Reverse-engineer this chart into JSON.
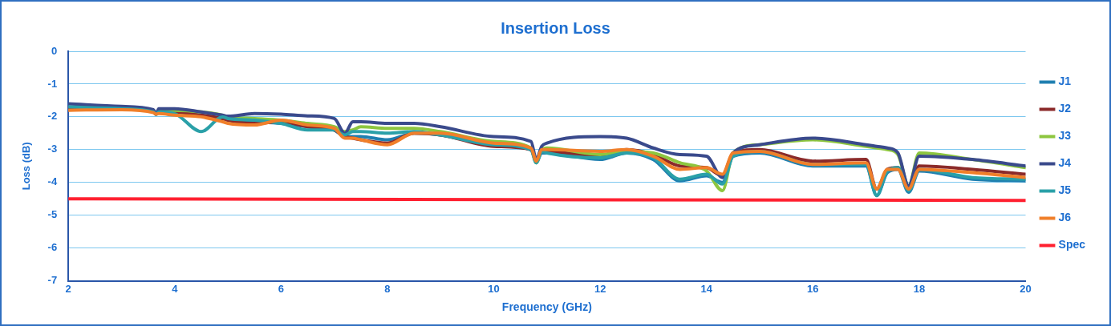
{
  "chart_data": {
    "type": "line",
    "title": "Insertion Loss",
    "xlabel": "Frequency (GHz)",
    "ylabel": "Loss (dB)",
    "x": [
      2,
      3,
      3.6,
      3.65,
      3.7,
      4,
      4.5,
      4.9,
      5,
      5.5,
      6,
      6.5,
      7,
      7.2,
      7.35,
      7.5,
      8,
      8.5,
      9,
      10,
      10.7,
      10.8,
      10.9,
      11,
      12,
      12.5,
      13,
      13.5,
      14,
      14.3,
      14.5,
      15,
      16,
      17,
      17.2,
      17.4,
      17.6,
      17.8,
      18,
      19,
      20
    ],
    "series": [
      {
        "name": "J1",
        "color": "#1f7fb0",
        "values": [
          -1.7,
          -1.75,
          -1.85,
          -1.92,
          -1.85,
          -1.85,
          -1.95,
          -2.05,
          -2.1,
          -2.15,
          -2.2,
          -2.3,
          -2.4,
          -2.6,
          -2.6,
          -2.6,
          -2.7,
          -2.5,
          -2.55,
          -2.85,
          -3.0,
          -3.4,
          -3.1,
          -3.1,
          -3.3,
          -3.1,
          -3.3,
          -3.95,
          -3.8,
          -4.0,
          -3.2,
          -3.1,
          -3.5,
          -3.5,
          -4.4,
          -3.7,
          -3.6,
          -4.3,
          -3.65,
          -3.9,
          -3.95
        ]
      },
      {
        "name": "J2",
        "color": "#8b2a2a",
        "values": [
          -1.72,
          -1.73,
          -1.83,
          -1.9,
          -1.85,
          -1.85,
          -1.95,
          -2.05,
          -2.1,
          -2.2,
          -2.15,
          -2.3,
          -2.4,
          -2.6,
          -2.65,
          -2.7,
          -2.8,
          -2.5,
          -2.55,
          -2.9,
          -3.0,
          -3.3,
          -3.05,
          -3.05,
          -3.2,
          -3.0,
          -3.15,
          -3.5,
          -3.55,
          -3.8,
          -3.1,
          -3.0,
          -3.35,
          -3.3,
          -4.2,
          -3.6,
          -3.55,
          -4.2,
          -3.5,
          -3.6,
          -3.75
        ]
      },
      {
        "name": "J3",
        "color": "#8dc63f",
        "values": [
          null,
          null,
          null,
          null,
          -1.8,
          -1.8,
          -1.85,
          -1.95,
          -2.0,
          -2.05,
          -2.1,
          -2.2,
          -2.3,
          -2.45,
          -2.4,
          -2.3,
          -2.35,
          -2.35,
          -2.45,
          -2.75,
          -2.95,
          -3.4,
          -3.0,
          -2.95,
          -3.15,
          -3.05,
          -3.1,
          -3.4,
          -3.65,
          -4.25,
          -3.1,
          -2.85,
          -2.7,
          -2.9,
          -2.95,
          -3.0,
          -3.15,
          -4.1,
          -3.1,
          -3.3,
          -3.55
        ]
      },
      {
        "name": "J4",
        "color": "#3a4a8c",
        "values": [
          -1.6,
          -1.68,
          -1.78,
          -1.92,
          -1.75,
          -1.75,
          -1.85,
          -1.95,
          -1.98,
          -1.9,
          -1.92,
          -1.97,
          -2.05,
          -2.5,
          -2.15,
          -2.15,
          -2.2,
          -2.2,
          -2.3,
          -2.6,
          -2.75,
          -3.3,
          -2.9,
          -2.8,
          -2.6,
          -2.65,
          -2.95,
          -3.15,
          -3.2,
          -3.85,
          -3.1,
          -2.85,
          -2.65,
          -2.85,
          -2.9,
          -2.95,
          -3.1,
          -4.1,
          -3.2,
          -3.3,
          -3.5
        ]
      },
      {
        "name": "J5",
        "color": "#2aa0a8",
        "values": [
          -1.7,
          -1.75,
          -1.85,
          -1.92,
          -1.85,
          -1.9,
          -2.45,
          -2.0,
          -2.05,
          -2.1,
          -2.2,
          -2.4,
          -2.4,
          -2.55,
          -2.45,
          -2.45,
          -2.5,
          -2.45,
          -2.55,
          -2.85,
          -3.0,
          -3.4,
          -3.05,
          -3.1,
          -3.25,
          -3.1,
          -3.25,
          -3.9,
          -3.75,
          -4.05,
          -3.2,
          -3.05,
          -3.45,
          -3.45,
          -4.4,
          -3.65,
          -3.55,
          -4.25,
          -3.6,
          -3.85,
          -3.9
        ]
      },
      {
        "name": "J6",
        "color": "#f07f2a",
        "values": [
          -1.8,
          -1.78,
          -1.87,
          -1.92,
          -1.9,
          -1.95,
          -2.0,
          -2.15,
          -2.2,
          -2.25,
          -2.1,
          -2.25,
          -2.35,
          -2.65,
          -2.65,
          -2.7,
          -2.85,
          -2.5,
          -2.5,
          -2.8,
          -2.95,
          -3.35,
          -3.0,
          -3.0,
          -3.05,
          -3.0,
          -3.2,
          -3.6,
          -3.55,
          -3.75,
          -3.1,
          -3.05,
          -3.45,
          -3.4,
          -4.2,
          -3.6,
          -3.6,
          -4.2,
          -3.6,
          -3.7,
          -3.85
        ]
      },
      {
        "name": "Spec",
        "color": "#ff2030",
        "x": [
          2,
          20
        ],
        "values": [
          -4.5,
          -4.55
        ]
      }
    ],
    "xlim": [
      2,
      20
    ],
    "xticks": [
      2,
      4,
      6,
      8,
      10,
      12,
      14,
      16,
      18,
      20
    ],
    "ylim": [
      -7,
      0
    ],
    "yticks": [
      -7,
      -6,
      -5,
      -4,
      -3,
      -2,
      -1,
      0
    ],
    "grid": "y",
    "legend": "right",
    "marker": "none",
    "line_style": "solid"
  }
}
